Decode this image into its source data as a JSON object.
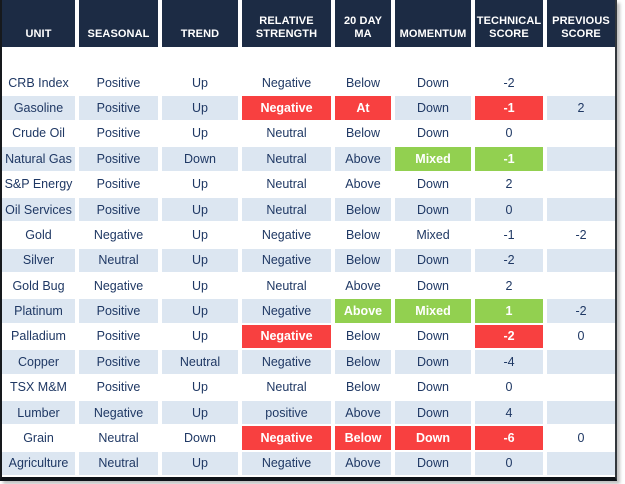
{
  "colors": {
    "header_bg": "#1c2b44",
    "row_alt": "#dce6f1",
    "red": "#f84040",
    "green": "#92d050",
    "text": "#1f3864",
    "highlight_text": "#ffffff"
  },
  "table": {
    "columns": [
      {
        "key": "unit",
        "label": "UNIT"
      },
      {
        "key": "seasonal",
        "label": "SEASONAL"
      },
      {
        "key": "trend",
        "label": "TREND"
      },
      {
        "key": "relative-strength",
        "label": "RELATIVE\nSTRENGTH"
      },
      {
        "key": "20-day-ma",
        "label": "20 DAY\nMA"
      },
      {
        "key": "momentum",
        "label": "MOMENTUM"
      },
      {
        "key": "technical-score",
        "label": "TECHNICAL\nSCORE"
      },
      {
        "key": "previous-score",
        "label": "PREVIOUS\nSCORE"
      }
    ],
    "rows": [
      {
        "cells": [
          {
            "text": "CRB Index"
          },
          {
            "text": "Positive"
          },
          {
            "text": "Up"
          },
          {
            "text": "Negative"
          },
          {
            "text": "Below"
          },
          {
            "text": "Down"
          },
          {
            "text": "-2"
          },
          {
            "text": ""
          }
        ]
      },
      {
        "cells": [
          {
            "text": "Gasoline"
          },
          {
            "text": "Positive"
          },
          {
            "text": "Up"
          },
          {
            "text": "Negative",
            "highlight": "red"
          },
          {
            "text": "At",
            "highlight": "red"
          },
          {
            "text": "Down"
          },
          {
            "text": "-1",
            "highlight": "red"
          },
          {
            "text": "2"
          }
        ]
      },
      {
        "cells": [
          {
            "text": "Crude Oil"
          },
          {
            "text": "Positive"
          },
          {
            "text": "Up"
          },
          {
            "text": "Neutral"
          },
          {
            "text": "Below"
          },
          {
            "text": "Down"
          },
          {
            "text": "0"
          },
          {
            "text": ""
          }
        ]
      },
      {
        "cells": [
          {
            "text": "Natural Gas"
          },
          {
            "text": "Positive"
          },
          {
            "text": "Down"
          },
          {
            "text": "Neutral"
          },
          {
            "text": "Above"
          },
          {
            "text": "Mixed",
            "highlight": "green"
          },
          {
            "text": "-1",
            "highlight": "green"
          },
          {
            "text": ""
          }
        ]
      },
      {
        "cells": [
          {
            "text": "S&P Energy"
          },
          {
            "text": "Positive"
          },
          {
            "text": "Up"
          },
          {
            "text": "Neutral"
          },
          {
            "text": "Above"
          },
          {
            "text": "Down"
          },
          {
            "text": "2"
          },
          {
            "text": ""
          }
        ]
      },
      {
        "cells": [
          {
            "text": "Oil Services"
          },
          {
            "text": "Positive"
          },
          {
            "text": "Up"
          },
          {
            "text": "Neutral"
          },
          {
            "text": "Below"
          },
          {
            "text": "Down"
          },
          {
            "text": "0"
          },
          {
            "text": ""
          }
        ]
      },
      {
        "cells": [
          {
            "text": "Gold"
          },
          {
            "text": "Negative"
          },
          {
            "text": "Up"
          },
          {
            "text": "Negative"
          },
          {
            "text": "Below"
          },
          {
            "text": "Mixed"
          },
          {
            "text": "-1"
          },
          {
            "text": "-2"
          }
        ]
      },
      {
        "cells": [
          {
            "text": "Silver"
          },
          {
            "text": "Neutral"
          },
          {
            "text": "Up"
          },
          {
            "text": "Negative"
          },
          {
            "text": "Below"
          },
          {
            "text": "Down"
          },
          {
            "text": "-2"
          },
          {
            "text": ""
          }
        ]
      },
      {
        "cells": [
          {
            "text": "Gold Bug"
          },
          {
            "text": "Negative"
          },
          {
            "text": "Up"
          },
          {
            "text": "Neutral"
          },
          {
            "text": "Above"
          },
          {
            "text": "Down"
          },
          {
            "text": "2"
          },
          {
            "text": ""
          }
        ]
      },
      {
        "cells": [
          {
            "text": "Platinum"
          },
          {
            "text": "Positive"
          },
          {
            "text": "Up"
          },
          {
            "text": "Negative"
          },
          {
            "text": "Above",
            "highlight": "green"
          },
          {
            "text": "Mixed",
            "highlight": "green"
          },
          {
            "text": "1",
            "highlight": "green"
          },
          {
            "text": "-2"
          }
        ]
      },
      {
        "cells": [
          {
            "text": "Palladium"
          },
          {
            "text": "Positive"
          },
          {
            "text": "Up"
          },
          {
            "text": "Negative",
            "highlight": "red"
          },
          {
            "text": "Below"
          },
          {
            "text": "Down"
          },
          {
            "text": "-2",
            "highlight": "red"
          },
          {
            "text": "0"
          }
        ]
      },
      {
        "cells": [
          {
            "text": "Copper"
          },
          {
            "text": "Positive"
          },
          {
            "text": "Neutral"
          },
          {
            "text": "Negative"
          },
          {
            "text": "Below"
          },
          {
            "text": "Down"
          },
          {
            "text": "-4"
          },
          {
            "text": ""
          }
        ]
      },
      {
        "cells": [
          {
            "text": "TSX M&M"
          },
          {
            "text": "Positive"
          },
          {
            "text": "Up"
          },
          {
            "text": "Neutral"
          },
          {
            "text": "Below"
          },
          {
            "text": "Down"
          },
          {
            "text": "0"
          },
          {
            "text": ""
          }
        ]
      },
      {
        "cells": [
          {
            "text": "Lumber"
          },
          {
            "text": "Negative"
          },
          {
            "text": "Up"
          },
          {
            "text": "positive"
          },
          {
            "text": "Above"
          },
          {
            "text": "Down"
          },
          {
            "text": "4"
          },
          {
            "text": ""
          }
        ]
      },
      {
        "cells": [
          {
            "text": "Grain"
          },
          {
            "text": "Neutral"
          },
          {
            "text": "Down"
          },
          {
            "text": "Negative",
            "highlight": "red"
          },
          {
            "text": "Below",
            "highlight": "red"
          },
          {
            "text": "Down",
            "highlight": "red"
          },
          {
            "text": "-6",
            "highlight": "red"
          },
          {
            "text": "0"
          }
        ]
      },
      {
        "cells": [
          {
            "text": "Agriculture"
          },
          {
            "text": "Neutral"
          },
          {
            "text": "Up"
          },
          {
            "text": "Negative"
          },
          {
            "text": "Above"
          },
          {
            "text": "Down"
          },
          {
            "text": "0"
          },
          {
            "text": ""
          }
        ]
      }
    ]
  }
}
